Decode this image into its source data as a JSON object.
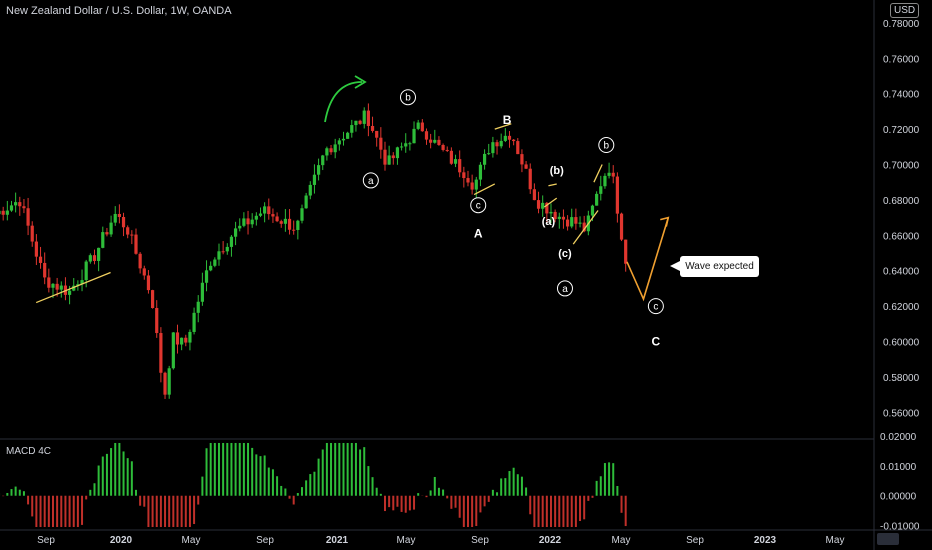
{
  "header": {
    "title": "New Zealand Dollar / U.S. Dollar, 1W, OANDA",
    "currency": "USD"
  },
  "macd": {
    "title": "MACD 4C"
  },
  "callout": {
    "text": "Wave expected"
  },
  "colors": {
    "up": "#26a69a",
    "up_bright": "#2ebd3a",
    "down": "#e0362f",
    "projection": "#f0a030",
    "channel": "#f0d060",
    "arrow": "#2ecc40",
    "macd_pos": "#2ebd3a",
    "macd_neg": "#c0302a"
  },
  "chart_data": {
    "type": "candlestick",
    "title": "New Zealand Dollar / U.S. Dollar, 1W, OANDA",
    "price_axis": {
      "labels": [
        "0.78000",
        "0.76000",
        "0.74000",
        "0.72000",
        "0.70000",
        "0.68000",
        "0.66000",
        "0.64000",
        "0.62000",
        "0.60000",
        "0.58000",
        "0.56000"
      ],
      "range": [
        0.5455,
        0.7884
      ]
    },
    "macd_axis": {
      "labels": [
        "0.02000",
        "0.01000",
        "0.00000",
        "-0.01000"
      ],
      "range": [
        -0.0115,
        0.0187
      ]
    },
    "time_axis": [
      "Sep",
      "2020",
      "May",
      "Sep",
      "2021",
      "May",
      "Sep",
      "2022",
      "May",
      "Sep",
      "2023",
      "May"
    ],
    "trend_anchors": [
      [
        "2019-06-03",
        0.672
      ],
      [
        "2019-07-15",
        0.68
      ],
      [
        "2019-08-26",
        0.635
      ],
      [
        "2019-10-07",
        0.628
      ],
      [
        "2019-11-18",
        0.648
      ],
      [
        "2019-12-23",
        0.672
      ],
      [
        "2020-01-13",
        0.664
      ],
      [
        "2020-02-24",
        0.625
      ],
      [
        "2020-03-16",
        0.568
      ],
      [
        "2020-03-30",
        0.602
      ],
      [
        "2020-04-20",
        0.598
      ],
      [
        "2020-06-01",
        0.645
      ],
      [
        "2020-07-13",
        0.662
      ],
      [
        "2020-08-31",
        0.674
      ],
      [
        "2020-10-26",
        0.664
      ],
      [
        "2020-12-14",
        0.708
      ],
      [
        "2021-02-22",
        0.728
      ],
      [
        "2021-03-29",
        0.7
      ],
      [
        "2021-05-24",
        0.722
      ],
      [
        "2021-06-28",
        0.708
      ],
      [
        "2021-08-09",
        0.695
      ],
      [
        "2021-08-23",
        0.688
      ],
      [
        "2021-09-20",
        0.712
      ],
      [
        "2021-10-25",
        0.718
      ],
      [
        "2021-12-06",
        0.68
      ],
      [
        "2022-01-17",
        0.67
      ],
      [
        "2022-02-07",
        0.668
      ],
      [
        "2022-02-28",
        0.663
      ],
      [
        "2022-03-28",
        0.692
      ],
      [
        "2022-04-11",
        0.7
      ],
      [
        "2022-05-09",
        0.642
      ]
    ],
    "projection": [
      [
        "2022-05-09",
        0.645
      ],
      [
        "2022-06-06",
        0.624
      ],
      [
        "2022-07-18",
        0.67
      ]
    ],
    "wave_labels": [
      {
        "text": "b",
        "circled": true,
        "date": "2021-05-03",
        "price": 0.738
      },
      {
        "text": "a",
        "circled": true,
        "date": "2021-03-01",
        "price": 0.691
      },
      {
        "text": "B",
        "circled": false,
        "date": "2021-10-18",
        "price": 0.725
      },
      {
        "text": "c",
        "circled": true,
        "date": "2021-08-30",
        "price": 0.677
      },
      {
        "text": "A",
        "circled": false,
        "date": "2021-08-30",
        "price": 0.661
      },
      {
        "text": "(b)",
        "circled": false,
        "date": "2022-01-10",
        "price": 0.697
      },
      {
        "text": "(a)",
        "circled": false,
        "date": "2021-12-27",
        "price": 0.668
      },
      {
        "text": "b",
        "circled": true,
        "date": "2022-04-04",
        "price": 0.711
      },
      {
        "text": "(c)",
        "circled": false,
        "date": "2022-01-24",
        "price": 0.65
      },
      {
        "text": "a",
        "circled": true,
        "date": "2022-01-24",
        "price": 0.63
      },
      {
        "text": "c",
        "circled": true,
        "date": "2022-06-27",
        "price": 0.62
      },
      {
        "text": "C",
        "circled": false,
        "date": "2022-06-27",
        "price": 0.6
      }
    ],
    "annotation": "Wave expected"
  }
}
